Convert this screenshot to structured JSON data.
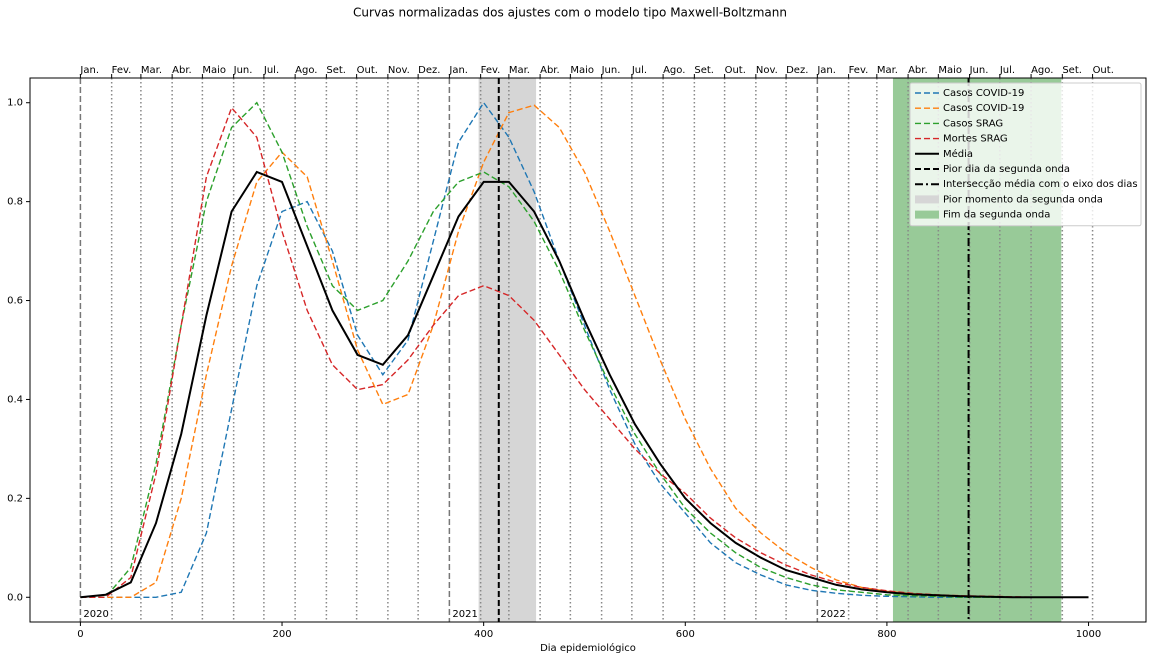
{
  "chart_data": {
    "type": "line",
    "title": "Curvas normalizadas dos ajustes com o modelo tipo Maxwell-Boltzmann",
    "xlabel": "Dia epidemiológico",
    "x": [
      0,
      25,
      50,
      75,
      100,
      125,
      150,
      175,
      200,
      225,
      250,
      275,
      300,
      325,
      350,
      375,
      400,
      425,
      450,
      475,
      500,
      525,
      550,
      575,
      600,
      625,
      650,
      675,
      700,
      725,
      750,
      775,
      800,
      825,
      850,
      875,
      900,
      925,
      950,
      975,
      1000
    ],
    "series": [
      {
        "name": "Casos COVID-19",
        "color": "#1f77b4",
        "linestyle": "dashed",
        "values": [
          0,
          0,
          0,
          0,
          0.01,
          0.13,
          0.38,
          0.63,
          0.78,
          0.8,
          0.7,
          0.53,
          0.45,
          0.52,
          0.72,
          0.92,
          1.0,
          0.93,
          0.82,
          0.68,
          0.55,
          0.42,
          0.31,
          0.23,
          0.17,
          0.11,
          0.07,
          0.045,
          0.025,
          0.014,
          0.008,
          0.004,
          0.002,
          0.001,
          0,
          0,
          0,
          0,
          0,
          0,
          0
        ]
      },
      {
        "name": "Casos COVID-19",
        "color": "#ff7f0e",
        "linestyle": "dashed",
        "values": [
          0,
          0,
          0,
          0.03,
          0.2,
          0.45,
          0.67,
          0.84,
          0.9,
          0.85,
          0.68,
          0.5,
          0.39,
          0.41,
          0.55,
          0.74,
          0.88,
          0.98,
          0.995,
          0.95,
          0.86,
          0.74,
          0.61,
          0.48,
          0.36,
          0.26,
          0.18,
          0.13,
          0.09,
          0.06,
          0.035,
          0.02,
          0.012,
          0.007,
          0.004,
          0.002,
          0.001,
          0,
          0,
          0,
          0
        ]
      },
      {
        "name": "Casos SRAG",
        "color": "#2ca02c",
        "linestyle": "dashed",
        "values": [
          0,
          0,
          0.06,
          0.27,
          0.55,
          0.8,
          0.95,
          1.0,
          0.9,
          0.75,
          0.63,
          0.58,
          0.6,
          0.68,
          0.78,
          0.84,
          0.86,
          0.83,
          0.76,
          0.66,
          0.54,
          0.43,
          0.33,
          0.25,
          0.18,
          0.13,
          0.09,
          0.06,
          0.04,
          0.025,
          0.015,
          0.01,
          0.005,
          0.003,
          0.002,
          0,
          0,
          0,
          0,
          0,
          0
        ]
      },
      {
        "name": "Mortes SRAG",
        "color": "#d62728",
        "linestyle": "dashed",
        "values": [
          0,
          0,
          0.04,
          0.25,
          0.55,
          0.85,
          0.99,
          0.93,
          0.74,
          0.58,
          0.47,
          0.42,
          0.43,
          0.48,
          0.55,
          0.61,
          0.63,
          0.61,
          0.56,
          0.49,
          0.42,
          0.36,
          0.3,
          0.25,
          0.21,
          0.16,
          0.12,
          0.09,
          0.065,
          0.045,
          0.03,
          0.02,
          0.013,
          0.008,
          0.005,
          0.003,
          0.002,
          0.001,
          0,
          0,
          0
        ]
      },
      {
        "name": "Média",
        "color": "#000000",
        "linestyle": "solid",
        "values": [
          0,
          0.005,
          0.03,
          0.15,
          0.33,
          0.57,
          0.78,
          0.86,
          0.84,
          0.71,
          0.58,
          0.49,
          0.47,
          0.53,
          0.65,
          0.77,
          0.84,
          0.84,
          0.78,
          0.68,
          0.56,
          0.45,
          0.35,
          0.27,
          0.2,
          0.15,
          0.11,
          0.08,
          0.055,
          0.04,
          0.025,
          0.016,
          0.01,
          0.006,
          0.004,
          0.002,
          0.001,
          0,
          0,
          0,
          0
        ]
      }
    ],
    "vlines": [
      {
        "name": "Pior dia da segunda onda",
        "x": 415,
        "color": "#000000",
        "linestyle": "dashed"
      },
      {
        "name": "Intersecção média com o eixo dos dias",
        "x": 881,
        "color": "#000000",
        "linestyle": "dashdot"
      }
    ],
    "spans": [
      {
        "name": "Pior momento da segunda onda",
        "x0": 395,
        "x1": 452,
        "color": "#d6d6d6"
      },
      {
        "name": "Fim da segunda onda",
        "x0": 806,
        "x1": 973,
        "color": "#98ca98"
      }
    ],
    "xlim": [
      -50,
      1057
    ],
    "ylim": [
      -0.05,
      1.05
    ],
    "xticks": [
      0,
      200,
      400,
      600,
      800,
      1000
    ],
    "yticks": [
      {
        "value": 0,
        "label": "0.0"
      },
      0.2,
      0.4,
      0.6,
      0.8,
      {
        "value": 1,
        "label": "1.0"
      }
    ],
    "top_xticks": [
      {
        "value": 0,
        "label": "Jan."
      },
      {
        "value": 31,
        "label": "Fev."
      },
      {
        "value": 60,
        "label": "Mar."
      },
      {
        "value": 91,
        "label": "Abr."
      },
      {
        "value": 121,
        "label": "Maio"
      },
      {
        "value": 152,
        "label": "Jun."
      },
      {
        "value": 182,
        "label": "Jul."
      },
      {
        "value": 213,
        "label": "Ago."
      },
      {
        "value": 244,
        "label": "Set."
      },
      {
        "value": 274,
        "label": "Out."
      },
      {
        "value": 305,
        "label": "Nov."
      },
      {
        "value": 335,
        "label": "Dez."
      },
      {
        "value": 366,
        "label": "Jan."
      },
      {
        "value": 397,
        "label": "Fev."
      },
      {
        "value": 425,
        "label": "Mar."
      },
      {
        "value": 456,
        "label": "Abr."
      },
      {
        "value": 486,
        "label": "Maio"
      },
      {
        "value": 517,
        "label": "Jun."
      },
      {
        "value": 547,
        "label": "Jul."
      },
      {
        "value": 578,
        "label": "Ago."
      },
      {
        "value": 609,
        "label": "Set."
      },
      {
        "value": 639,
        "label": "Out."
      },
      {
        "value": 670,
        "label": "Nov."
      },
      {
        "value": 700,
        "label": "Dez."
      },
      {
        "value": 731,
        "label": "Jan."
      },
      {
        "value": 762,
        "label": "Fev."
      },
      {
        "value": 790,
        "label": "Mar."
      },
      {
        "value": 821,
        "label": "Abr."
      },
      {
        "value": 851,
        "label": "Maio"
      },
      {
        "value": 882,
        "label": "Jun."
      },
      {
        "value": 912,
        "label": "Jul."
      },
      {
        "value": 943,
        "label": "Ago."
      },
      {
        "value": 974,
        "label": "Set."
      },
      {
        "value": 1004,
        "label": "Out."
      }
    ],
    "year_markers": [
      {
        "value": 0,
        "label": "2020"
      },
      {
        "value": 366,
        "label": "2021"
      },
      {
        "value": 731,
        "label": "2022"
      }
    ],
    "legend": "upper right"
  }
}
